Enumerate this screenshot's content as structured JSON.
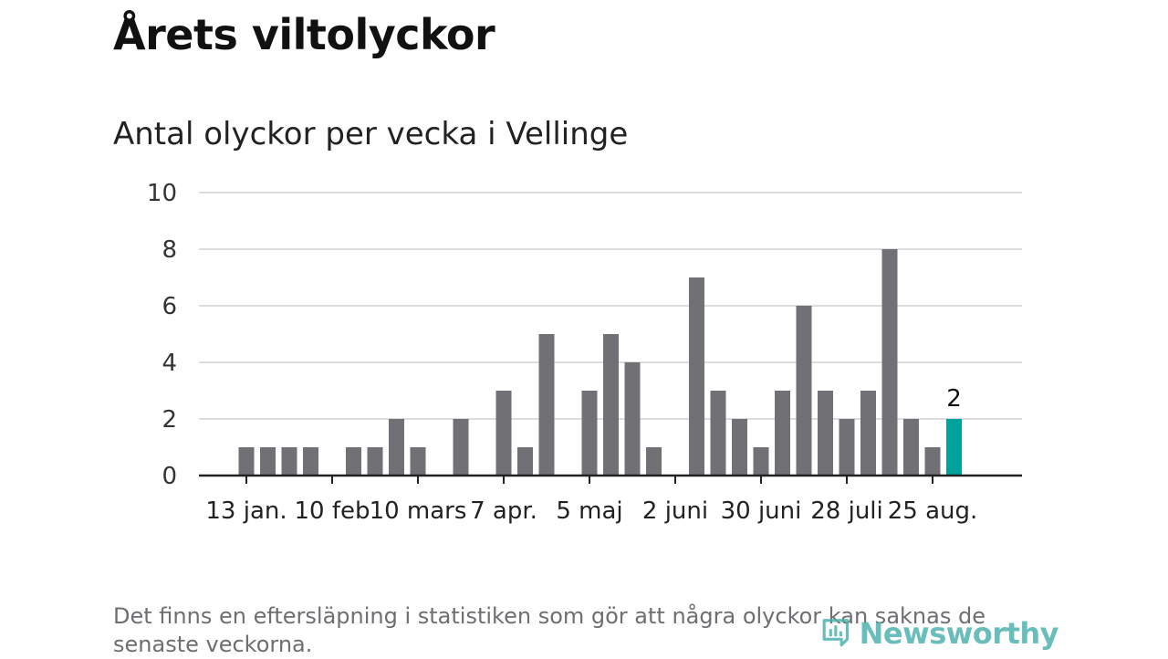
{
  "header": {
    "title": "Årets viltolyckor",
    "subtitle": "Antal olyckor per vecka i Vellinge"
  },
  "footnote": "Det finns en eftersläpning i statistiken som gör att några olyckor kan saknas de senaste veckorna.",
  "logo": {
    "text": "Newsworthy",
    "icon": "bar-chart-icon"
  },
  "colors": {
    "bar": "#717075",
    "highlight": "#00a39b",
    "grid": "#dcdcdc",
    "axis": "#222222"
  },
  "chart_data": {
    "type": "bar",
    "title": "Antal olyckor per vecka i Vellinge",
    "xlabel": "",
    "ylabel": "",
    "ylim": [
      0,
      10
    ],
    "yticks": [
      0,
      2,
      4,
      6,
      8,
      10
    ],
    "grid": true,
    "x_start_week": 1,
    "x_end_week": 36,
    "weeks": [
      3,
      4,
      5,
      6,
      8,
      9,
      10,
      11,
      13,
      15,
      16,
      17,
      19,
      20,
      21,
      22,
      24,
      25,
      26,
      27,
      28,
      29,
      30,
      31,
      32,
      33,
      34,
      35,
      36
    ],
    "values": [
      1,
      1,
      1,
      1,
      1,
      1,
      2,
      1,
      2,
      3,
      1,
      5,
      3,
      5,
      4,
      1,
      7,
      3,
      2,
      1,
      3,
      6,
      3,
      2,
      3,
      8,
      2,
      1,
      2
    ],
    "highlight_week": 36,
    "highlight_label": "2",
    "xticks": [
      {
        "week": 3,
        "label": "13 jan."
      },
      {
        "week": 7,
        "label": "10 feb"
      },
      {
        "week": 11,
        "label": "10 mars"
      },
      {
        "week": 15,
        "label": "7 apr."
      },
      {
        "week": 19,
        "label": "5 maj"
      },
      {
        "week": 23,
        "label": "2 juni"
      },
      {
        "week": 27,
        "label": "30 juni"
      },
      {
        "week": 31,
        "label": "28 juli"
      },
      {
        "week": 35,
        "label": "25 aug."
      }
    ]
  }
}
